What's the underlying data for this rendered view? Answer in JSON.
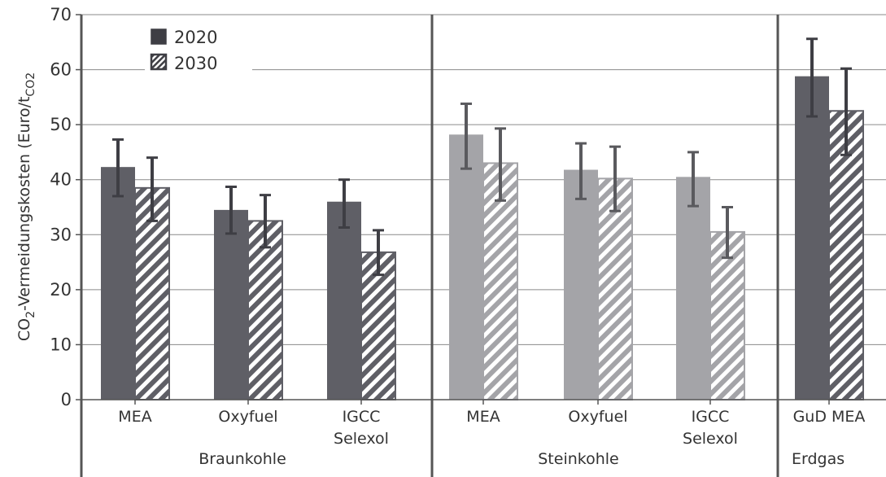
{
  "chart_data": {
    "type": "bar",
    "ylabel": {
      "main": "CO",
      "sub1": "2",
      "mid": "-Vermeidungskosten (Euro/t",
      "sub2": "CO2"
    },
    "ylim": [
      0,
      70
    ],
    "yticks": [
      "0",
      "10",
      "20",
      "30",
      "40",
      "50",
      "60",
      "70"
    ],
    "grid": true,
    "legend": {
      "placement": "top-left",
      "entries": [
        {
          "name": "2020",
          "style": "solid"
        },
        {
          "name": "2030",
          "style": "hatched"
        }
      ]
    },
    "groups": [
      {
        "name": "Braunkohle",
        "color_2020": "#5f5f66",
        "color_2030": "#5f5f66",
        "error_color": "#3e3e44",
        "categories": [
          {
            "label": [
              "MEA"
            ],
            "v2020": 42.3,
            "e2020": [
              37.0,
              47.3
            ],
            "v2030": 38.5,
            "e2030": [
              32.5,
              44.0
            ]
          },
          {
            "label": [
              "Oxyfuel"
            ],
            "v2020": 34.5,
            "e2020": [
              30.2,
              38.7
            ],
            "v2030": 32.5,
            "e2030": [
              27.7,
              37.2
            ]
          },
          {
            "label": [
              "IGCC",
              "Selexol"
            ],
            "v2020": 36.0,
            "e2020": [
              31.3,
              40.0
            ],
            "v2030": 26.8,
            "e2030": [
              22.7,
              30.8
            ]
          }
        ]
      },
      {
        "name": "Steinkohle",
        "color_2020": "#a4a4a8",
        "color_2030": "#a4a4a8",
        "error_color": "#5a5a5e",
        "categories": [
          {
            "label": [
              "MEA"
            ],
            "v2020": 48.2,
            "e2020": [
              42.0,
              53.8
            ],
            "v2030": 43.0,
            "e2030": [
              36.2,
              49.3
            ]
          },
          {
            "label": [
              "Oxyfuel"
            ],
            "v2020": 41.8,
            "e2020": [
              36.5,
              46.6
            ],
            "v2030": 40.2,
            "e2030": [
              34.3,
              46.0
            ]
          },
          {
            "label": [
              "IGCC",
              "Selexol"
            ],
            "v2020": 40.5,
            "e2020": [
              35.2,
              45.0
            ],
            "v2030": 30.5,
            "e2030": [
              25.8,
              35.0
            ]
          }
        ]
      },
      {
        "name": "Erdgas",
        "color_2020": "#5f5f66",
        "color_2030": "#5f5f66",
        "error_color": "#3e3e44",
        "categories": [
          {
            "label": [
              "GuD MEA"
            ],
            "v2020": 58.8,
            "e2020": [
              51.5,
              65.6
            ],
            "v2030": 52.5,
            "e2030": [
              44.5,
              60.2
            ]
          }
        ]
      }
    ]
  }
}
